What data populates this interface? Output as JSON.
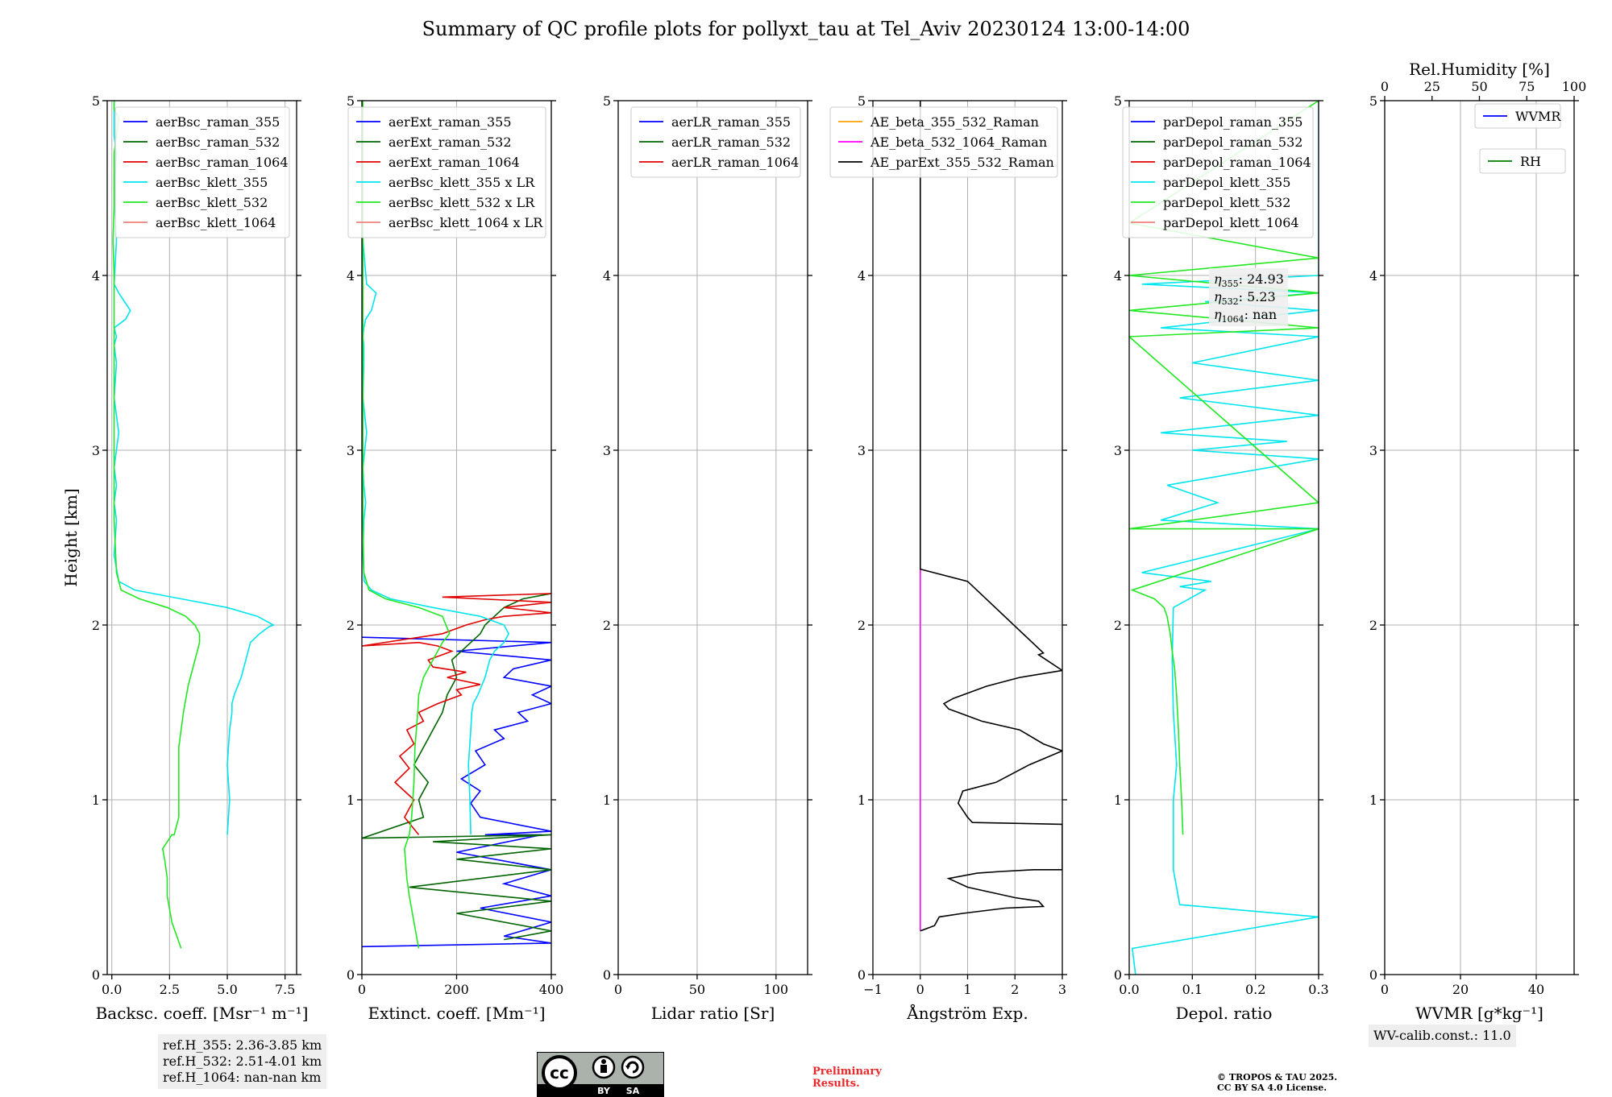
{
  "title": "Summary of QC profile plots for pollyxt_tau at Tel_Aviv 20230124 13:00-14:00",
  "chart_data": [
    {
      "type": "line",
      "panel": "backscatter",
      "xlabel": "Backsc. coeff. [Msr⁻¹ m⁻¹]",
      "ylabel": "Height [km]",
      "xlim": [
        -0.2,
        8
      ],
      "ylim": [
        0,
        5
      ],
      "xticks": [
        "0.0",
        "2.5",
        "5.0",
        "7.5"
      ],
      "xtick_values": [
        0,
        2.5,
        5,
        7.5
      ],
      "yticks": [
        "0",
        "1",
        "2",
        "3",
        "4",
        "5"
      ],
      "legend_position": "top-right",
      "series": [
        {
          "name": "aerBsc_raman_355",
          "color": "#0000ff",
          "x": [],
          "y": []
        },
        {
          "name": "aerBsc_raman_532",
          "color": "#006400",
          "x": [],
          "y": []
        },
        {
          "name": "aerBsc_raman_1064",
          "color": "#e00000",
          "x": [],
          "y": []
        },
        {
          "name": "aerBsc_klett_355",
          "color": "#00e5ee",
          "x": [
            5.0,
            5.1,
            5.0,
            5.1,
            5.2,
            5.2,
            5.3,
            5.6,
            5.8,
            6.0,
            6.4,
            6.8,
            7.0,
            6.3,
            5.0,
            3.0,
            1.0,
            0.3,
            0.1,
            0.2,
            0.1,
            0.2,
            0.1,
            0.3,
            0.1,
            0.2,
            0.1,
            0.2,
            0.1,
            0.6,
            0.8,
            0.3,
            0.1,
            0.2,
            0.1,
            0.2,
            0.1,
            0.1,
            0.1
          ],
          "y": [
            0.8,
            1.0,
            1.2,
            1.4,
            1.5,
            1.55,
            1.6,
            1.7,
            1.8,
            1.9,
            1.95,
            1.99,
            2.0,
            2.05,
            2.1,
            2.15,
            2.2,
            2.25,
            2.4,
            2.6,
            2.7,
            2.8,
            2.9,
            3.1,
            3.3,
            3.5,
            3.6,
            3.65,
            3.7,
            3.75,
            3.8,
            3.9,
            3.95,
            4.2,
            4.5,
            4.7,
            4.8,
            4.9,
            5.0
          ]
        },
        {
          "name": "aerBsc_klett_532",
          "color": "#22e822",
          "x": [
            3.0,
            2.6,
            2.4,
            2.4,
            2.3,
            2.2,
            2.6,
            2.7,
            2.9,
            2.9,
            2.9,
            3.0,
            3.1,
            3.3,
            3.6,
            3.8,
            3.8,
            3.6,
            3.2,
            2.4,
            1.2,
            0.4,
            0.2,
            0.1,
            0.1,
            0.1,
            0.1,
            0.1,
            0.05,
            0.1,
            0.1,
            0.1,
            0.2,
            0.3,
            0.1,
            0.1
          ],
          "y": [
            0.15,
            0.3,
            0.45,
            0.55,
            0.65,
            0.72,
            0.8,
            0.8,
            0.9,
            1.1,
            1.3,
            1.4,
            1.5,
            1.65,
            1.8,
            1.9,
            1.95,
            2.0,
            2.05,
            2.1,
            2.15,
            2.2,
            2.3,
            2.6,
            3.0,
            3.4,
            3.8,
            4.0,
            4.2,
            4.4,
            4.6,
            4.7,
            4.8,
            4.9,
            4.95,
            5.0
          ]
        },
        {
          "name": "aerBsc_klett_1064",
          "color": "#f08080",
          "x": [],
          "y": []
        }
      ],
      "annotation": [
        "ref.H_355: 2.36-3.85 km",
        "ref.H_532: 2.51-4.01 km",
        "ref.H_1064: nan-nan km"
      ]
    },
    {
      "type": "line",
      "panel": "extinction",
      "xlabel": "Extinct. coeff. [Mm⁻¹]",
      "xlim": [
        0,
        400
      ],
      "ylim": [
        0,
        5
      ],
      "xticks": [
        "0",
        "200",
        "400"
      ],
      "xtick_values": [
        0,
        200,
        400
      ],
      "yticks": [
        "0",
        "1",
        "2",
        "3",
        "4",
        "5"
      ],
      "legend_position": "top-right",
      "series": [
        {
          "name": "aerExt_raman_355",
          "color": "#0000ff",
          "x": [
            0,
            400,
            300,
            400,
            250,
            400,
            300,
            400,
            200,
            380,
            260,
            400,
            250,
            230,
            250,
            210,
            260,
            240,
            300,
            280,
            350,
            330,
            400,
            360,
            400,
            300,
            320,
            400,
            200,
            400,
            0
          ],
          "y": [
            0.16,
            0.18,
            0.22,
            0.3,
            0.38,
            0.45,
            0.52,
            0.6,
            0.7,
            0.8,
            0.8,
            0.82,
            0.9,
            0.98,
            1.05,
            1.12,
            1.2,
            1.28,
            1.35,
            1.4,
            1.45,
            1.5,
            1.55,
            1.6,
            1.65,
            1.7,
            1.75,
            1.8,
            1.85,
            1.9,
            1.93
          ]
        },
        {
          "name": "aerExt_raman_532",
          "color": "#006400",
          "x": [
            300,
            400,
            200,
            400,
            100,
            400,
            200,
            400,
            150,
            400,
            0,
            130,
            120,
            140,
            110,
            130,
            150,
            170,
            180,
            200,
            190,
            210,
            230,
            250,
            260,
            280,
            300,
            340,
            400
          ],
          "y": [
            0.2,
            0.25,
            0.35,
            0.42,
            0.5,
            0.6,
            0.66,
            0.72,
            0.76,
            0.8,
            0.78,
            0.9,
            1.0,
            1.1,
            1.2,
            1.3,
            1.4,
            1.5,
            1.6,
            1.7,
            1.8,
            1.85,
            1.9,
            1.95,
            2.0,
            2.05,
            2.1,
            2.15,
            2.18
          ]
        },
        {
          "name": "aerExt_raman_1064",
          "color": "#e00000",
          "x": [
            120,
            90,
            110,
            70,
            100,
            80,
            110,
            95,
            130,
            120,
            160,
            210,
            200,
            250,
            180,
            220,
            150,
            140,
            190,
            160,
            120,
            0,
            170,
            220,
            260,
            300,
            400,
            300,
            400,
            170,
            400
          ],
          "y": [
            0.8,
            0.9,
            1.0,
            1.1,
            1.18,
            1.25,
            1.32,
            1.4,
            1.45,
            1.5,
            1.55,
            1.6,
            1.63,
            1.66,
            1.7,
            1.73,
            1.76,
            1.8,
            1.85,
            1.88,
            1.9,
            1.88,
            1.95,
            2.0,
            2.03,
            2.05,
            2.07,
            2.1,
            2.13,
            2.16,
            2.18
          ]
        },
        {
          "name": "aerBsc_klett_355 x LR",
          "color": "#00e5ee",
          "x": [
            230,
            228,
            225,
            230,
            232,
            235,
            245,
            260,
            270,
            280,
            300,
            310,
            300,
            250,
            150,
            60,
            20,
            5,
            2,
            4,
            8,
            4,
            2,
            10,
            2,
            4,
            4,
            2,
            4,
            8,
            20,
            30,
            10,
            2,
            2,
            2,
            2
          ],
          "y": [
            0.8,
            1.0,
            1.2,
            1.4,
            1.5,
            1.55,
            1.6,
            1.7,
            1.8,
            1.85,
            1.9,
            1.95,
            2.0,
            2.05,
            2.1,
            2.15,
            2.2,
            2.25,
            2.4,
            2.6,
            2.7,
            2.8,
            2.9,
            3.1,
            3.3,
            3.5,
            3.6,
            3.65,
            3.7,
            3.75,
            3.8,
            3.9,
            3.95,
            4.2,
            4.5,
            4.8,
            5.0
          ]
        },
        {
          "name": "aerBsc_klett_532 x LR",
          "color": "#22e822",
          "x": [
            120,
            110,
            100,
            95,
            92,
            90,
            100,
            105,
            110,
            112,
            115,
            118,
            120,
            130,
            150,
            170,
            185,
            170,
            120,
            50,
            15,
            4,
            2,
            2,
            2,
            2,
            2,
            2,
            2,
            2
          ],
          "y": [
            0.15,
            0.3,
            0.45,
            0.55,
            0.65,
            0.72,
            0.8,
            0.9,
            1.1,
            1.3,
            1.4,
            1.5,
            1.6,
            1.7,
            1.8,
            1.9,
            1.95,
            2.05,
            2.1,
            2.15,
            2.2,
            2.3,
            2.6,
            3.0,
            3.4,
            3.8,
            4.0,
            4.2,
            4.6,
            5.0
          ]
        },
        {
          "name": "aerBsc_klett_1064 x LR",
          "color": "#f08080",
          "x": [],
          "y": []
        }
      ]
    },
    {
      "type": "line",
      "panel": "lidar-ratio",
      "xlabel": "Lidar ratio [Sr]",
      "xlim": [
        0,
        120
      ],
      "ylim": [
        0,
        5
      ],
      "xticks": [
        "0",
        "50",
        "100"
      ],
      "xtick_values": [
        0,
        50,
        100
      ],
      "yticks": [
        "0",
        "1",
        "2",
        "3",
        "4",
        "5"
      ],
      "legend_position": "top-right",
      "series": [
        {
          "name": "aerLR_raman_355",
          "color": "#0000ff",
          "x": [],
          "y": []
        },
        {
          "name": "aerLR_raman_532",
          "color": "#006400",
          "x": [],
          "y": []
        },
        {
          "name": "aerLR_raman_1064",
          "color": "#e00000",
          "x": [],
          "y": []
        }
      ]
    },
    {
      "type": "line",
      "panel": "angstrom",
      "xlabel": "Ångström Exp.",
      "xlim": [
        -1,
        3
      ],
      "ylim": [
        0,
        5
      ],
      "xticks": [
        "−1",
        "0",
        "1",
        "2",
        "3"
      ],
      "xtick_values": [
        -1,
        0,
        1,
        2,
        3
      ],
      "yticks": [
        "0",
        "1",
        "2",
        "3",
        "4",
        "5"
      ],
      "legend_position": "top-right",
      "series": [
        {
          "name": "AE_beta_355_532_Raman",
          "color": "#ffa500",
          "x": [],
          "y": []
        },
        {
          "name": "AE_beta_532_1064_Raman",
          "color": "#ff00ff",
          "x": [
            0,
            0
          ],
          "y": [
            0.25,
            2.32
          ]
        },
        {
          "name": "AE_parExt_355_532_Raman",
          "color": "#000000",
          "x": [
            0,
            0.3,
            0.4,
            0.9,
            1.8,
            2.6,
            2.5,
            2.0,
            1.0,
            0.6,
            1.2,
            1.7,
            2.4,
            3.0,
            3.0,
            1.1,
            1.0,
            0.8,
            0.9,
            1.6,
            2.3,
            3.0,
            2.6,
            2.1,
            1.3,
            0.8,
            0.6,
            0.5,
            0.7,
            1.4,
            2.1,
            3.0,
            2.5,
            2.6,
            1.0,
            0.0,
            0.0
          ],
          "y": [
            0.25,
            0.28,
            0.33,
            0.35,
            0.38,
            0.39,
            0.42,
            0.44,
            0.5,
            0.55,
            0.58,
            0.59,
            0.6,
            0.6,
            0.86,
            0.87,
            0.9,
            0.98,
            1.05,
            1.1,
            1.2,
            1.28,
            1.32,
            1.4,
            1.45,
            1.5,
            1.52,
            1.55,
            1.58,
            1.65,
            1.7,
            1.74,
            1.83,
            1.84,
            2.25,
            2.32,
            5.0
          ]
        }
      ]
    },
    {
      "type": "line",
      "panel": "depolarization",
      "xlabel": "Depol. ratio",
      "xlim": [
        0,
        0.3
      ],
      "ylim": [
        0,
        5
      ],
      "xticks": [
        "0.0",
        "0.1",
        "0.2",
        "0.3"
      ],
      "xtick_values": [
        0,
        0.1,
        0.2,
        0.3
      ],
      "yticks": [
        "0",
        "1",
        "2",
        "3",
        "4",
        "5"
      ],
      "legend_position": "top-left",
      "series": [
        {
          "name": "parDepol_raman_355",
          "color": "#0000ff",
          "x": [],
          "y": []
        },
        {
          "name": "parDepol_raman_532",
          "color": "#006400",
          "x": [],
          "y": []
        },
        {
          "name": "parDepol_raman_1064",
          "color": "#e00000",
          "x": [],
          "y": []
        },
        {
          "name": "parDepol_klett_355",
          "color": "#00e5ee",
          "x": [
            0.01,
            0.005,
            0.3,
            0.08,
            0.07,
            0.07,
            0.07,
            0.075,
            0.07,
            0.068,
            0.07,
            0.12,
            0.08,
            0.13,
            0.02,
            0.3,
            0.05,
            0.14,
            0.06,
            0.3,
            0.1,
            0.25,
            0.05,
            0.3,
            0.08,
            0.3,
            0.1,
            0.3,
            0.05,
            0.3,
            0.12,
            0.3,
            0.02,
            0.3,
            0.3,
            0.3
          ],
          "y": [
            0.0,
            0.15,
            0.33,
            0.4,
            0.6,
            0.8,
            1.0,
            1.2,
            1.5,
            1.8,
            2.1,
            2.2,
            2.22,
            2.25,
            2.3,
            2.55,
            2.6,
            2.7,
            2.8,
            2.95,
            3.0,
            3.05,
            3.1,
            3.2,
            3.3,
            3.4,
            3.5,
            3.65,
            3.7,
            3.8,
            3.85,
            3.9,
            3.95,
            4.0,
            4.5,
            5.0
          ]
        },
        {
          "name": "parDepol_klett_532",
          "color": "#22e822",
          "x": [
            0.085,
            0.083,
            0.08,
            0.078,
            0.075,
            0.072,
            0.068,
            0.065,
            0.06,
            0.055,
            0.04,
            0.005,
            0.3,
            0.0,
            0.3,
            0.0,
            0.3,
            0.0,
            0.3,
            0.0,
            0.3,
            0.0,
            0.3
          ],
          "y": [
            0.8,
            1.0,
            1.2,
            1.4,
            1.6,
            1.75,
            1.85,
            1.95,
            2.05,
            2.1,
            2.15,
            2.2,
            2.55,
            2.55,
            2.7,
            3.65,
            3.7,
            3.8,
            3.9,
            4.0,
            4.1,
            4.3,
            5.0
          ]
        },
        {
          "name": "parDepol_klett_1064",
          "color": "#f08080",
          "x": [],
          "y": []
        }
      ],
      "annotation": [
        {
          "label": "η",
          "sub": "355",
          "value": ": 24.93"
        },
        {
          "label": "η",
          "sub": "532",
          "value": ": 5.23"
        },
        {
          "label": "η",
          "sub": "1064",
          "value": ": nan"
        }
      ]
    },
    {
      "type": "line",
      "panel": "water-vapor",
      "xlabel": "WVMR [g*kg⁻¹]",
      "x2label": "Rel.Humidity [%]",
      "xlim": [
        0,
        50
      ],
      "x2lim": [
        0,
        100
      ],
      "ylim": [
        0,
        5
      ],
      "xticks": [
        "0",
        "20",
        "40"
      ],
      "xtick_values": [
        0,
        20,
        40
      ],
      "x2ticks": [
        "0",
        "25",
        "50",
        "75",
        "100"
      ],
      "x2tick_values": [
        0,
        25,
        50,
        75,
        100
      ],
      "yticks": [
        "0",
        "1",
        "2",
        "3",
        "4",
        "5"
      ],
      "legend_position": "top-right",
      "series": [
        {
          "name": "WVMR",
          "color": "#0000ff",
          "x": [],
          "y": []
        },
        {
          "name": "RH",
          "color": "#008000",
          "x": [],
          "y": []
        }
      ],
      "annotation": "WV-calib.const.: 11.0"
    }
  ],
  "footer": {
    "preliminary_line1": "Preliminary",
    "preliminary_line2": "Results.",
    "copyright_line1": "© TROPOS & TAU 2025.",
    "copyright_line2": "CC BY SA 4.0 License.",
    "license_logo": {
      "cc": "cc",
      "by": "BY",
      "sa": "SA"
    }
  }
}
